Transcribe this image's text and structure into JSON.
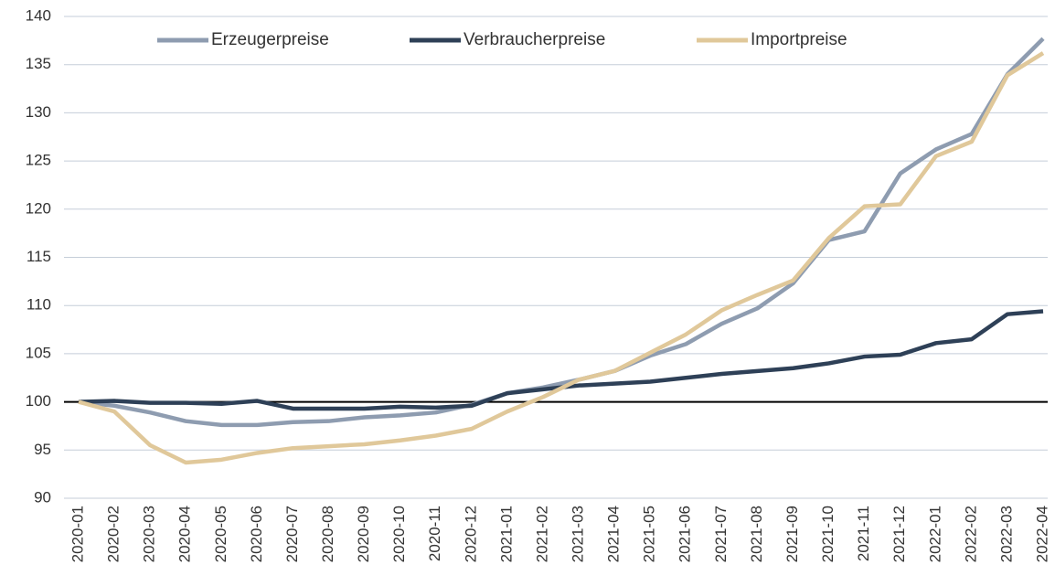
{
  "chart_data": {
    "type": "line",
    "categories": [
      "2020-01",
      "2020-02",
      "2020-03",
      "2020-04",
      "2020-05",
      "2020-06",
      "2020-07",
      "2020-08",
      "2020-09",
      "2020-10",
      "2020-11",
      "2020-12",
      "2021-01",
      "2021-02",
      "2021-03",
      "2021-04",
      "2021-05",
      "2021-06",
      "2021-07",
      "2021-08",
      "2021-09",
      "2021-10",
      "2021-11",
      "2021-12",
      "2022-01",
      "2022-02",
      "2022-03",
      "2022-04"
    ],
    "series": [
      {
        "name": "Erzeugerpreise",
        "color": "#8e9cb0",
        "values": [
          100,
          99.6,
          98.9,
          98.0,
          97.6,
          97.6,
          97.9,
          98.0,
          98.4,
          98.6,
          98.9,
          99.7,
          100.9,
          101.5,
          102.3,
          103.2,
          104.8,
          106.0,
          108.1,
          109.7,
          112.3,
          116.8,
          117.7,
          123.7,
          126.2,
          127.8,
          134.0,
          137.7
        ]
      },
      {
        "name": "Verbraucherpreise",
        "color": "#2e4057",
        "values": [
          100,
          100.1,
          99.9,
          99.9,
          99.8,
          100.1,
          99.3,
          99.3,
          99.3,
          99.5,
          99.4,
          99.6,
          100.9,
          101.3,
          101.7,
          101.9,
          102.1,
          102.5,
          102.9,
          103.2,
          103.5,
          104.0,
          104.7,
          104.9,
          106.1,
          106.5,
          109.1,
          109.4
        ]
      },
      {
        "name": "Importpreise",
        "color": "#e0c89a",
        "values": [
          100,
          99.0,
          95.5,
          93.7,
          94.0,
          94.7,
          95.2,
          95.4,
          95.6,
          96.0,
          96.5,
          97.2,
          99.0,
          100.5,
          102.3,
          103.2,
          105.1,
          107.0,
          109.5,
          111.1,
          112.6,
          117.0,
          120.3,
          120.5,
          125.5,
          127.0,
          133.9,
          136.2
        ]
      }
    ],
    "reference_line": 100,
    "ylim": [
      90,
      140
    ],
    "yticks": [
      90,
      95,
      100,
      105,
      110,
      115,
      120,
      125,
      130,
      135,
      140
    ],
    "grid": true,
    "legend": "top"
  }
}
